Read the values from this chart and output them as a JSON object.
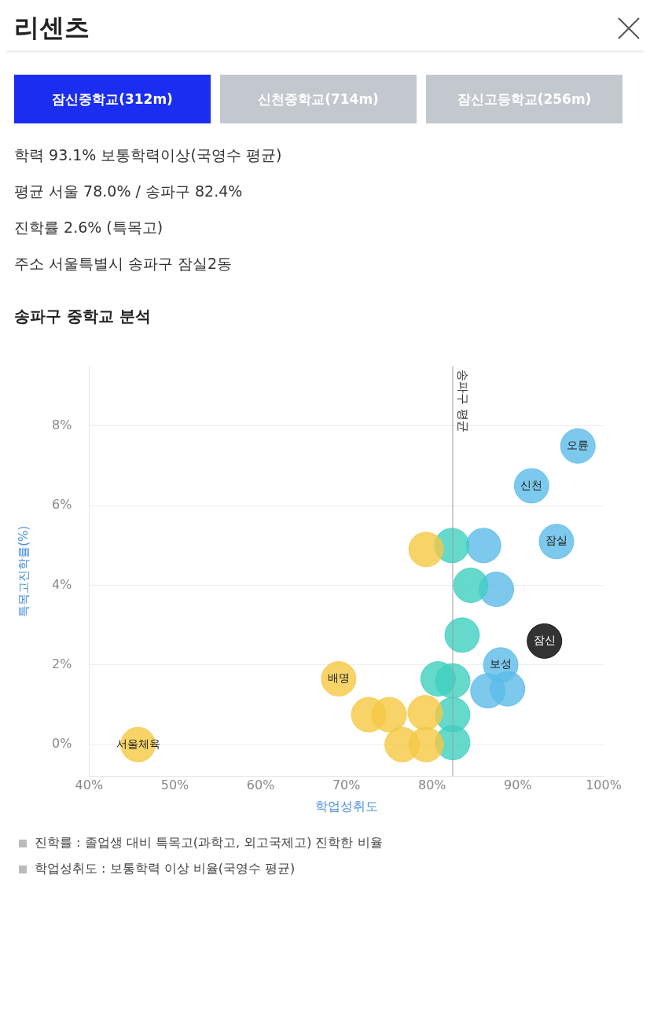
{
  "chart_data": {
    "type": "scatter",
    "title": "송파구 중학교 분석",
    "xlabel": "학업성취도",
    "ylabel": "특목고진학률(%)",
    "annotations": [
      "리센츠",
      "잠신중학교(312m)",
      "신천중학교(714m)",
      "잠신고등학교(256m)",
      "학력 93.1% 보통학력이상(국영수 평균)",
      "평균 서울 78.0% / 송파구 82.4%",
      "진학률 2.6% (특목고)",
      "주소 서울특별시 송파구 잠실2동",
      "진학률 : 졸업생 대비 특목고(과학고, 외고국제고) 진학한 비율",
      "학업성취도 : 보통학력 이상 비율(국영수 평균)",
      {
        "text": "오륜",
        "x": 97.0,
        "y": 7.5
      },
      {
        "text": "신천",
        "x": 91.6,
        "y": 6.5
      },
      {
        "text": "잠실",
        "x": 94.5,
        "y": 5.1
      },
      {
        "text": "잠신",
        "x": 93.1,
        "y": 2.6
      },
      {
        "text": "보성",
        "x": 88.0,
        "y": 2.0
      },
      {
        "text": "배명",
        "x": 69.1,
        "y": 1.65
      },
      {
        "text": "서울체육",
        "x": 45.7,
        "y": 0
      }
    ],
    "series": [
      {
        "color": "#f5c842",
        "x": [
          45.7,
          69.1,
          72.6,
          75.0,
          79.2,
          76.5,
          79.3,
          79.3
        ],
        "values": [
          0,
          1.65,
          0.75,
          0.75,
          0.8,
          0,
          0,
          4.9
        ]
      },
      {
        "color": "#3ecfbf",
        "x": [
          82.3,
          84.5,
          83.5,
          80.7,
          82.4,
          82.4,
          82.4
        ],
        "values": [
          5.0,
          4.0,
          2.75,
          1.65,
          1.6,
          0.75,
          0.05
        ]
      },
      {
        "color": "#5bbce8",
        "x": [
          97.0,
          91.6,
          94.5,
          86.0,
          87.5,
          88.0,
          86.5,
          88.8
        ],
        "values": [
          7.5,
          6.5,
          5.1,
          5.0,
          3.9,
          2.0,
          1.35,
          1.4
        ]
      },
      {
        "color": "#000000",
        "x": [
          93.1
        ],
        "values": [
          2.6
        ]
      }
    ],
    "xlim": [
      40,
      100
    ],
    "xticks": [
      {
        "value": 40,
        "label": "40%"
      },
      {
        "value": 50,
        "label": "50%"
      },
      {
        "value": 60,
        "label": "60%"
      },
      {
        "value": 70,
        "label": "70%"
      },
      {
        "value": 80,
        "label": "80%"
      },
      {
        "value": 90,
        "label": "90%"
      },
      {
        "value": 100,
        "label": "100%"
      }
    ],
    "ylim": [
      -0.8,
      9.5
    ],
    "yticks": [
      {
        "value": 0,
        "label": "0%"
      },
      {
        "value": 2,
        "label": "2%"
      },
      {
        "value": 4,
        "label": "4%"
      },
      {
        "value": 6,
        "label": "6%"
      },
      {
        "value": 8,
        "label": "8%"
      }
    ],
    "grid": "y",
    "marker": "circle",
    "legend": false,
    "ref_lines": [
      {
        "axis": "x",
        "value": 82.4,
        "label": "송파구 평균",
        "color": "#9aa0a6"
      }
    ]
  }
}
